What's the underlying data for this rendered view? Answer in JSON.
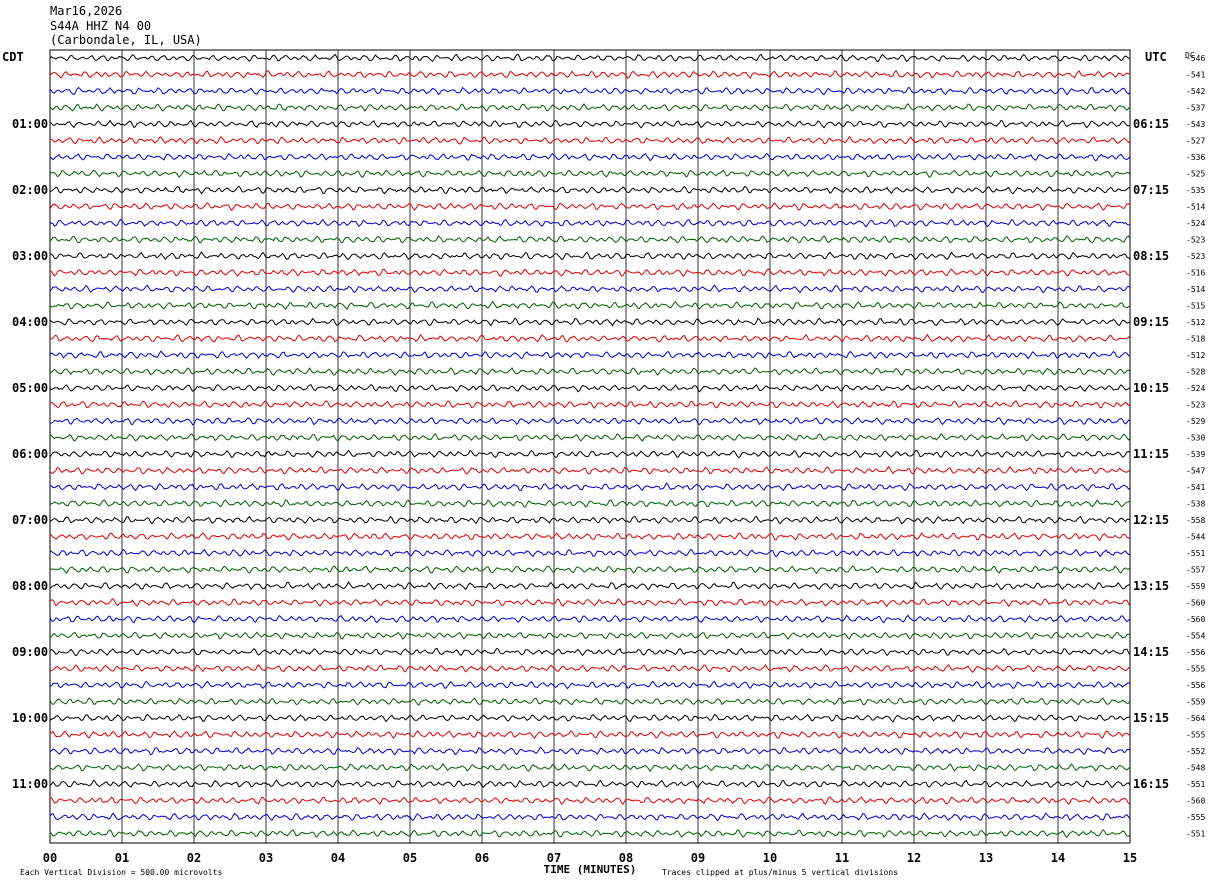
{
  "header": {
    "date": "Mar16,2026",
    "station": "S44A HHZ N4 00",
    "location": "(Carbondale, IL, USA)"
  },
  "chart_data": {
    "type": "line",
    "left_tz_label": "CDT",
    "right_tz_label": "UTC",
    "dc_label": "DC",
    "xlabel": "TIME (MINUTES)",
    "x_ticks": [
      "00",
      "01",
      "02",
      "03",
      "04",
      "05",
      "06",
      "07",
      "08",
      "09",
      "10",
      "11",
      "12",
      "13",
      "14",
      "15"
    ],
    "xlim": [
      0,
      15
    ],
    "left_hour_labels": [
      "01:00",
      "02:00",
      "03:00",
      "04:00",
      "05:00",
      "06:00",
      "07:00",
      "08:00",
      "09:00",
      "10:00",
      "11:00"
    ],
    "right_hour_labels": [
      "06:15",
      "07:15",
      "08:15",
      "09:15",
      "10:15",
      "11:15",
      "12:15",
      "13:15",
      "14:15",
      "15:15",
      "16:15"
    ],
    "trace_colors": [
      "#000000",
      "#e00000",
      "#0000d0",
      "#006000"
    ],
    "dc_offsets": [
      "-546",
      "-541",
      "-542",
      "-537",
      "-543",
      "-527",
      "-536",
      "-525",
      "-535",
      "-514",
      "-524",
      "-523",
      "-523",
      "-516",
      "-514",
      "-515",
      "-512",
      "-518",
      "-512",
      "-528",
      "-524",
      "-523",
      "-529",
      "-530",
      "-539",
      "-547",
      "-541",
      "-538",
      "-558",
      "-544",
      "-551",
      "-557",
      "-559",
      "-560",
      "-560",
      "-554",
      "-556",
      "-555",
      "-556",
      "-559",
      "-564",
      "-555",
      "-552",
      "-548",
      "-551",
      "-560",
      "-555",
      "-551"
    ],
    "footer_scale": "Each Vertical Division =  500.00 microvolts",
    "footer_clip": "Traces clipped at plus/minus 5 vertical divisions"
  }
}
